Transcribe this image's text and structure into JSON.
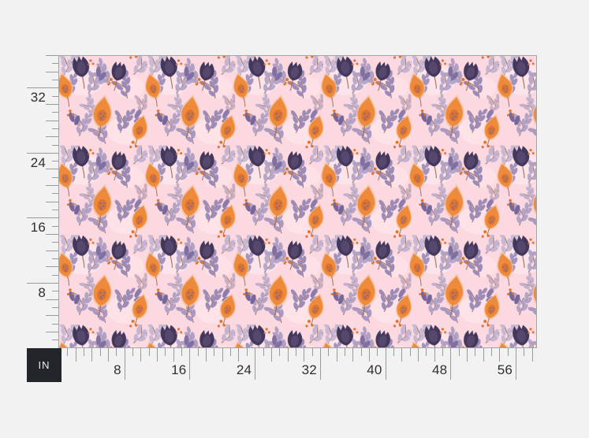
{
  "rulers": {
    "unit_label": "IN",
    "vertical": {
      "labels": [
        "32",
        "24",
        "16",
        "8"
      ],
      "max_inches": 36
    },
    "horizontal": {
      "labels": [
        "8",
        "16",
        "24",
        "32",
        "40",
        "48",
        "56"
      ],
      "max_inches": 58
    }
  },
  "fabric": {
    "description": "watercolor floral pattern: orange blooms, dark plum tulips, lavender leaf sprigs on pink"
  },
  "colors": {
    "page_bg": "#f2f2f2",
    "tick": "#9a9a9a",
    "label_text": "#2f2f2f",
    "unit_box_bg": "#22262b",
    "unit_box_text": "#ececec",
    "fabric_bg": "#fcd9e0",
    "fabric_border": "#a5a5a5",
    "orange_main": "#ee8a3b",
    "orange_dark": "#e0732b",
    "orange_light": "#f8c29a",
    "tulip_dark": "#44375c",
    "tulip_light": "#6a5a82",
    "lavender": "#a899c2",
    "stem": "#9c6e59",
    "speckle": "#7d6c92"
  }
}
